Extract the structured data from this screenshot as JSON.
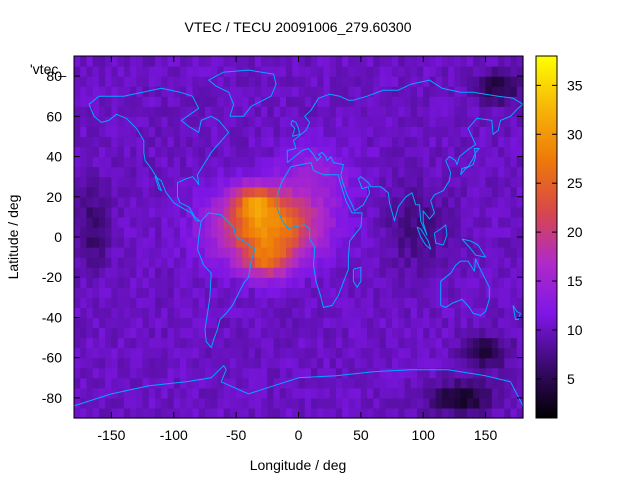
{
  "chart_data": {
    "type": "heatmap",
    "title": "VTEC / TECU 20091006_279.60300",
    "xlabel": "Longitude / deg",
    "ylabel": "Latitude / deg",
    "key_label": "'vtec_",
    "xlim": [
      -180,
      180
    ],
    "ylim": [
      -90,
      90
    ],
    "xticks": [
      -150,
      -100,
      -50,
      0,
      50,
      100,
      150
    ],
    "yticks": [
      -80,
      -60,
      -40,
      -20,
      0,
      20,
      40,
      60,
      80
    ],
    "colorbar": {
      "range": [
        1,
        38
      ],
      "ticks": [
        5,
        10,
        15,
        20,
        25,
        30,
        35
      ],
      "palette": [
        "#000000",
        "#3a0a6e",
        "#7e16e6",
        "#b02ac8",
        "#d8484a",
        "#ee7a08",
        "#f7b608",
        "#ffff00"
      ]
    },
    "model": {
      "background_vtec": 10,
      "grid_step_deg": 5,
      "peaks": [
        {
          "lon": -25,
          "lat": 5,
          "vtec": 19,
          "sigma_lon": 40,
          "sigma_lat": 17
        },
        {
          "lon": -35,
          "lat": 18,
          "vtec": 10,
          "sigma_lon": 18,
          "sigma_lat": 8
        },
        {
          "lon": -25,
          "lat": -12,
          "vtec": 10,
          "sigma_lon": 18,
          "sigma_lat": 8
        },
        {
          "lon": 15,
          "lat": 30,
          "vtec": 4,
          "sigma_lon": 30,
          "sigma_lat": 15
        }
      ],
      "troughs": [
        {
          "lon": 130,
          "lat": -80,
          "vtec": -7,
          "sigma_lon": 25,
          "sigma_lat": 8
        },
        {
          "lon": 150,
          "lat": -57,
          "vtec": -6,
          "sigma_lon": 18,
          "sigma_lat": 8
        },
        {
          "lon": 160,
          "lat": 75,
          "vtec": -6,
          "sigma_lon": 18,
          "sigma_lat": 8
        },
        {
          "lon": -165,
          "lat": 5,
          "vtec": -4,
          "sigma_lon": 12,
          "sigma_lat": 20
        },
        {
          "lon": 95,
          "lat": 5,
          "vtec": -3,
          "sigma_lon": 25,
          "sigma_lat": 20
        }
      ]
    },
    "overlay": "coastlines",
    "overlay_color": "#00a8ff"
  }
}
